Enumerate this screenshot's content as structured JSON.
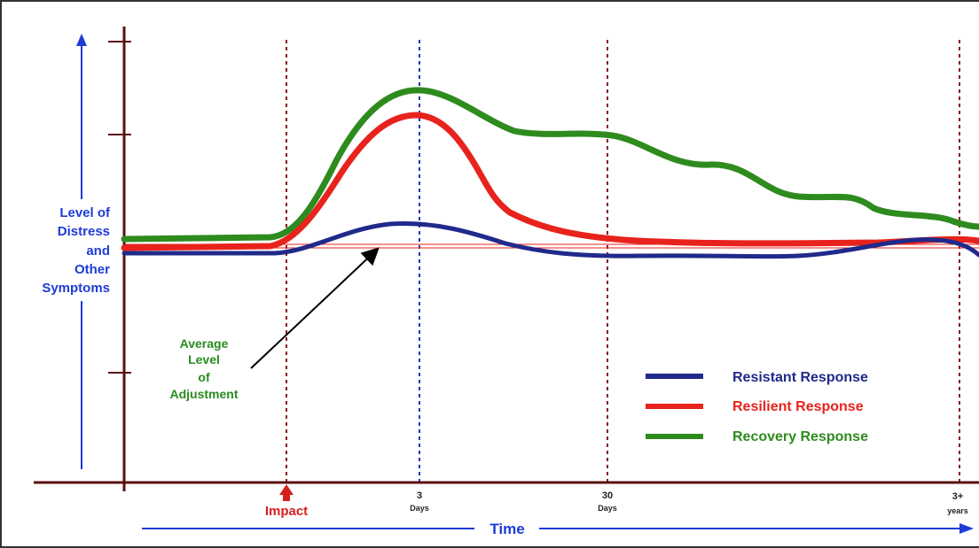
{
  "y_axis_label": [
    "Level of",
    "Distress",
    "and",
    "Other",
    "Symptoms"
  ],
  "x_axis_label": "Time",
  "x_markers": {
    "impact": "Impact",
    "three_days_num": "3",
    "three_days_unit": "Days",
    "thirty_days_num": "30",
    "thirty_days_unit": "Days",
    "three_years_num": "3+",
    "three_years_unit": "years"
  },
  "annotation": [
    "Average",
    "Level",
    "of",
    "Adjustment"
  ],
  "legend": {
    "resistant": "Resistant Response",
    "resilient": "Resilient Response",
    "recovery": "Recovery Response"
  },
  "colors": {
    "axis": "#5a1010",
    "resistant": "#1f2a8a",
    "resilient": "#e8231d",
    "recovery": "#2e8b1e",
    "marker_dashed": "#8b1a1a",
    "marker_3days": "#2233cc",
    "y_label": "#1f3bd6",
    "impact": "#d62020",
    "annotation": "#2a8a1f",
    "arrow_blue": "#1f3bd6"
  }
}
